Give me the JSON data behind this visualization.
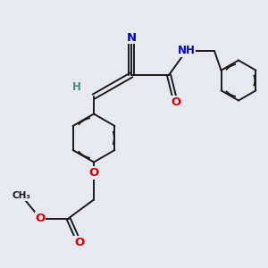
{
  "background_color": "#e8e8f0",
  "bond_color": "#1a1a1a",
  "bond_width": 1.4,
  "atom_colors": {
    "N": "#0000cc",
    "O": "#cc0000",
    "H": "#4a8a7a",
    "C": "#1a1a1a"
  },
  "font_size": 8.5,
  "figsize": [
    3.0,
    3.0
  ],
  "dpi": 100,
  "xlim": [
    0,
    10
  ],
  "ylim": [
    0,
    10
  ]
}
